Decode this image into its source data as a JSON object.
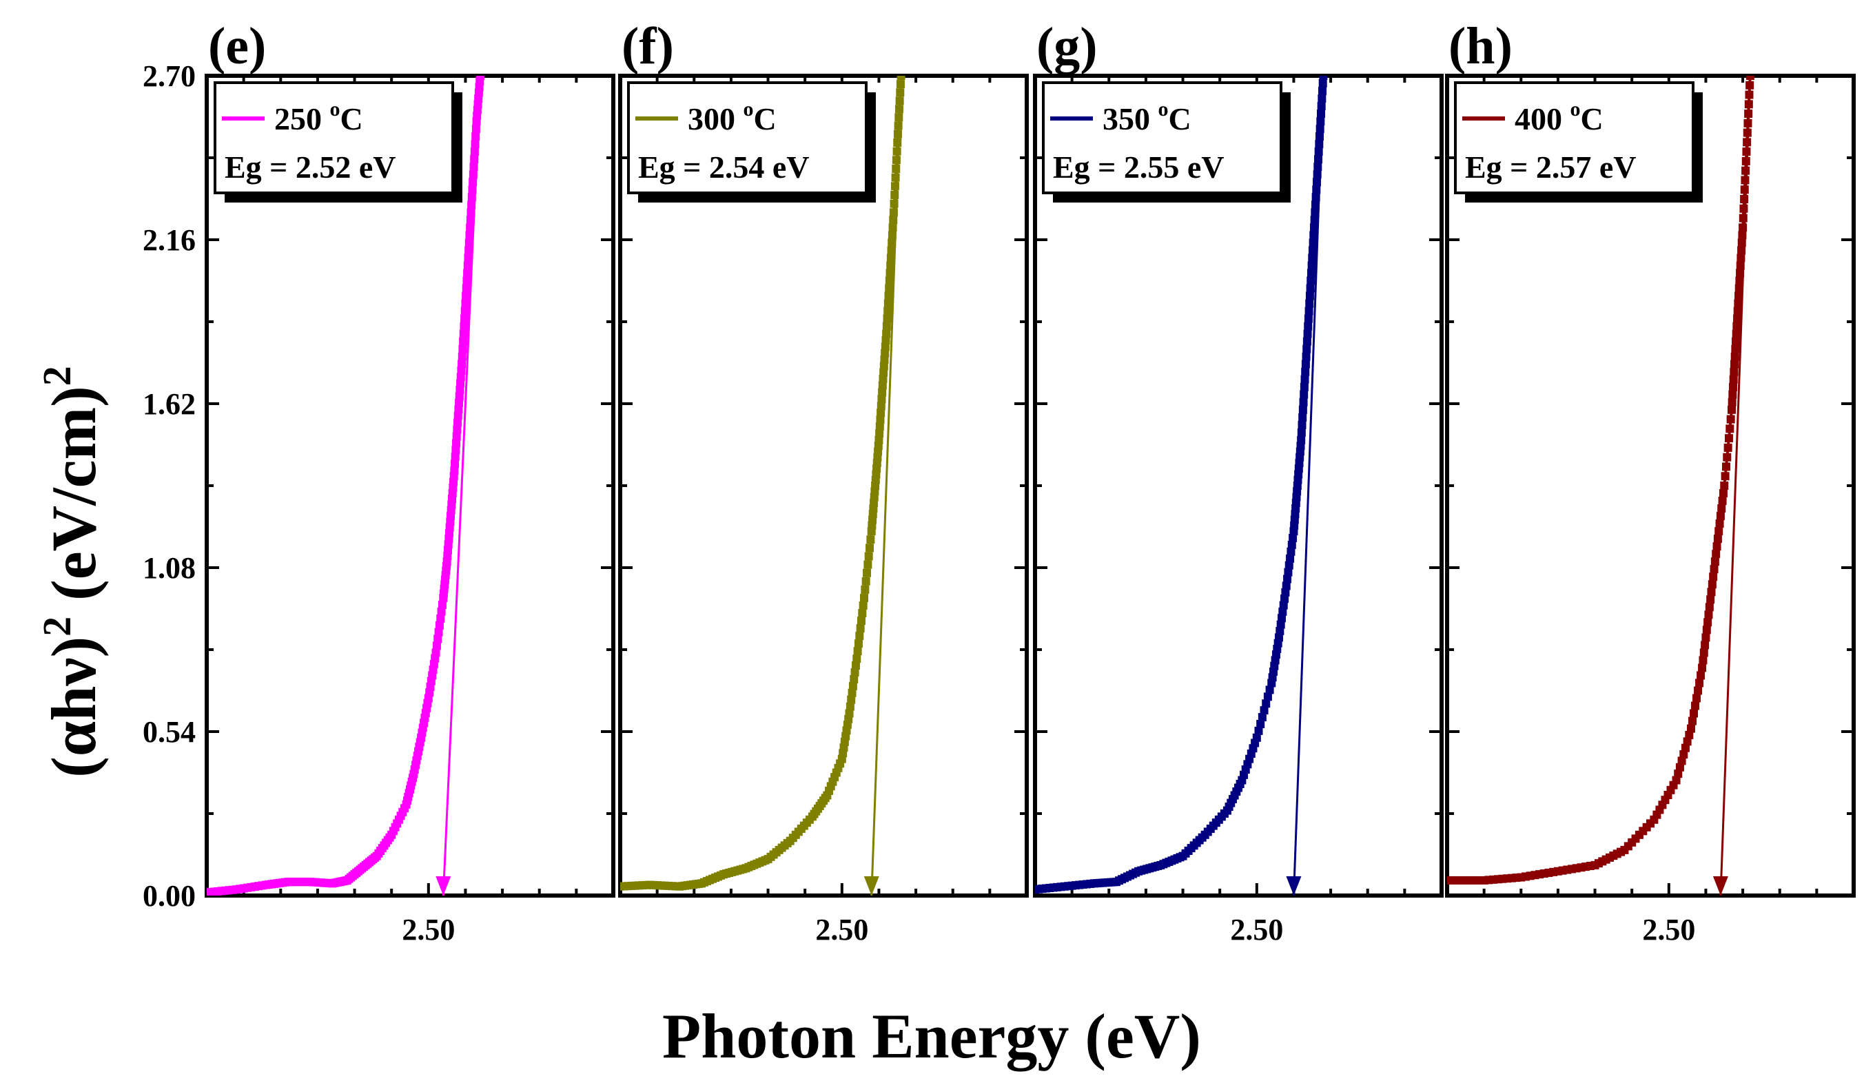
{
  "chart_data": {
    "type": "scatter",
    "xlabel": "Photon Energy (eV)",
    "ylabel": "(αhν)",
    "ylabel_sup": "2",
    "ylabel_unit": " (eV/cm)",
    "ylabel_unit_sup": "2",
    "xlim": [
      2.2,
      2.75
    ],
    "ylim": [
      0.0,
      2.7
    ],
    "yticks": [
      "0.00",
      "0.54",
      "1.08",
      "1.62",
      "2.16",
      "2.70"
    ],
    "ytick_values": [
      0.0,
      0.54,
      1.08,
      1.62,
      2.16,
      2.7
    ],
    "xtick_label": "2.50",
    "xtick_value": 2.5,
    "panels": [
      {
        "label": "(e)",
        "temp": "250",
        "temp_sup": "o",
        "temp_unit": "C",
        "eg_label": "Eg = 2.52 eV",
        "eg": 2.52,
        "color": "#ff00ff",
        "series": {
          "x": [
            2.2,
            2.24,
            2.28,
            2.31,
            2.34,
            2.37,
            2.39,
            2.41,
            2.43,
            2.45,
            2.47,
            2.48,
            2.49,
            2.5,
            2.51,
            2.52,
            2.525,
            2.53,
            2.535,
            2.54,
            2.545,
            2.55,
            2.555,
            2.56,
            2.565,
            2.57
          ],
          "y": [
            0.01,
            0.02,
            0.035,
            0.045,
            0.045,
            0.04,
            0.05,
            0.09,
            0.13,
            0.2,
            0.3,
            0.4,
            0.52,
            0.65,
            0.8,
            0.98,
            1.1,
            1.25,
            1.4,
            1.58,
            1.75,
            1.95,
            2.15,
            2.35,
            2.55,
            2.7
          ]
        },
        "fit": {
          "x": [
            2.52,
            2.57
          ],
          "y": [
            0.0,
            2.7
          ]
        }
      },
      {
        "label": "(f)",
        "temp": "300",
        "temp_sup": "o",
        "temp_unit": "C",
        "eg_label": "Eg = 2.54 eV",
        "eg": 2.54,
        "color": "#808000",
        "series": {
          "x": [
            2.2,
            2.24,
            2.28,
            2.31,
            2.34,
            2.37,
            2.4,
            2.43,
            2.46,
            2.48,
            2.5,
            2.51,
            2.52,
            2.53,
            2.54,
            2.545,
            2.55,
            2.555,
            2.56,
            2.565,
            2.57,
            2.575,
            2.58
          ],
          "y": [
            0.03,
            0.035,
            0.03,
            0.04,
            0.07,
            0.09,
            0.12,
            0.18,
            0.26,
            0.33,
            0.45,
            0.6,
            0.78,
            0.98,
            1.2,
            1.35,
            1.5,
            1.68,
            1.85,
            2.05,
            2.25,
            2.48,
            2.7
          ]
        },
        "fit": {
          "x": [
            2.54,
            2.58
          ],
          "y": [
            0.0,
            2.7
          ]
        }
      },
      {
        "label": "(g)",
        "temp": "350",
        "temp_sup": "o",
        "temp_unit": "C",
        "eg_label": "Eg = 2.55 eV",
        "eg": 2.55,
        "color": "#000080",
        "series": {
          "x": [
            2.2,
            2.24,
            2.28,
            2.31,
            2.34,
            2.37,
            2.4,
            2.43,
            2.46,
            2.48,
            2.5,
            2.52,
            2.53,
            2.54,
            2.55,
            2.555,
            2.56,
            2.565,
            2.57,
            2.575,
            2.58,
            2.585,
            2.59
          ],
          "y": [
            0.02,
            0.03,
            0.04,
            0.045,
            0.08,
            0.1,
            0.13,
            0.2,
            0.28,
            0.38,
            0.52,
            0.7,
            0.85,
            1.02,
            1.2,
            1.35,
            1.5,
            1.7,
            1.9,
            2.1,
            2.3,
            2.5,
            2.7
          ]
        },
        "fit": {
          "x": [
            2.55,
            2.59
          ],
          "y": [
            0.0,
            2.7
          ]
        }
      },
      {
        "label": "(h)",
        "temp": "400",
        "temp_sup": "o",
        "temp_unit": "C",
        "eg_label": "Eg = 2.57 eV",
        "eg": 2.57,
        "color": "#8b0000",
        "series": {
          "x": [
            2.2,
            2.25,
            2.3,
            2.35,
            2.4,
            2.44,
            2.48,
            2.51,
            2.53,
            2.545,
            2.555,
            2.565,
            2.575,
            2.585,
            2.59,
            2.595,
            2.6,
            2.605,
            2.61
          ],
          "y": [
            0.05,
            0.05,
            0.06,
            0.08,
            0.1,
            0.15,
            0.25,
            0.38,
            0.55,
            0.75,
            0.95,
            1.15,
            1.35,
            1.6,
            1.8,
            2.0,
            2.2,
            2.45,
            2.7
          ]
        },
        "fit": {
          "x": [
            2.57,
            2.61
          ],
          "y": [
            0.0,
            2.7
          ]
        }
      }
    ]
  }
}
